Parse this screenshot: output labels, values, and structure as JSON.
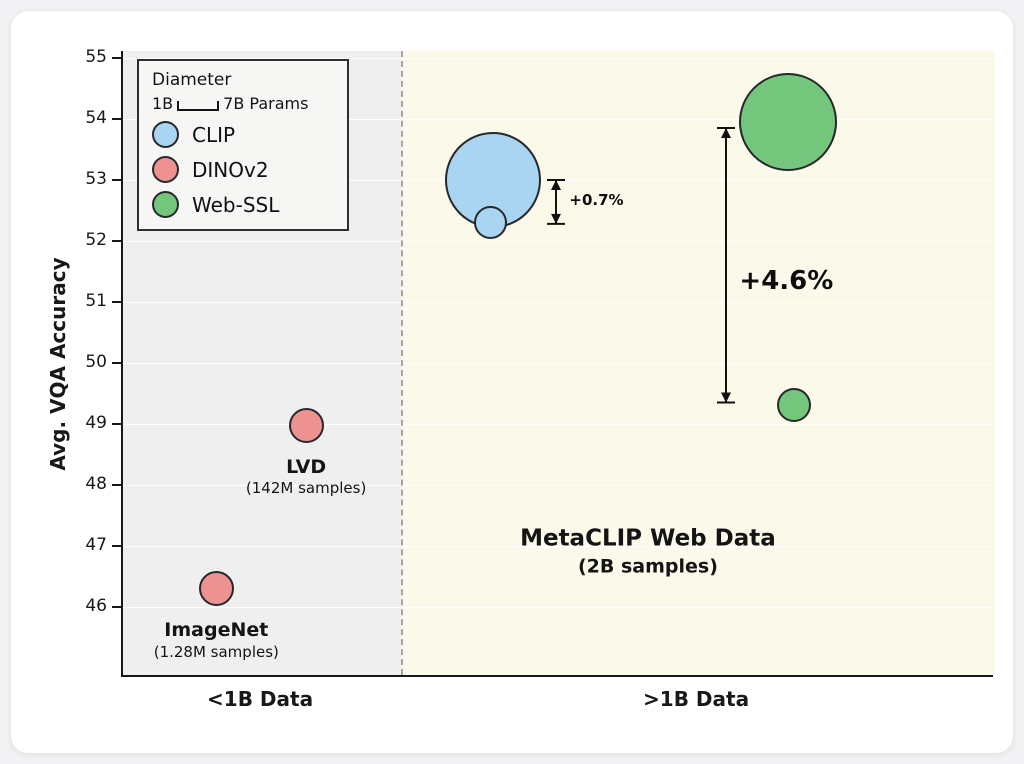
{
  "chart_data": {
    "type": "scatter",
    "title": "",
    "ylabel": "Avg. VQA Accuracy",
    "ylim": [
      44.85,
      55.11
    ],
    "yticks": [
      46,
      47,
      48,
      49,
      50,
      51,
      52,
      53,
      54,
      55
    ],
    "grid": true,
    "x_axis": {
      "divider_x": 0.319,
      "regions": [
        {
          "label": "<1B Data",
          "start": 0,
          "end": 0.319,
          "background": "#efeff0"
        },
        {
          "label": ">1B Data",
          "start": 0.319,
          "end": 1,
          "background": "#fbf9ea"
        }
      ]
    },
    "legend": {
      "title": "Diameter",
      "size_scale": {
        "min_label": "1B",
        "max_label": "7B Params"
      },
      "items": [
        {
          "label": "CLIP",
          "color": "#a9d5f2"
        },
        {
          "label": "DINOv2",
          "color": "#ee9191"
        },
        {
          "label": "Web-SSL",
          "color": "#74c67c"
        }
      ]
    },
    "points": [
      {
        "series": "DINOv2",
        "x": 0.107,
        "y": 46.3,
        "radius": 17.5,
        "color": "#ee9191",
        "label": "ImageNet",
        "sublabel": "(1.28M samples)"
      },
      {
        "series": "DINOv2",
        "x": 0.21,
        "y": 48.98,
        "radius": 17.5,
        "color": "#ee9191",
        "label": "LVD",
        "sublabel": "(142M samples)"
      },
      {
        "series": "CLIP",
        "x": 0.424,
        "y": 53.0,
        "radius": 48,
        "color": "#a9d5f2"
      },
      {
        "series": "CLIP",
        "x": 0.421,
        "y": 52.3,
        "radius": 16.5,
        "color": "#a9d5f2"
      },
      {
        "series": "Web-SSL",
        "x": 0.763,
        "y": 53.95,
        "radius": 49,
        "color": "#74c67c"
      },
      {
        "series": "Web-SSL",
        "x": 0.769,
        "y": 49.3,
        "radius": 17,
        "color": "#74c67c"
      }
    ],
    "annotations": [
      {
        "type": "range-arrow",
        "x": 0.497,
        "y_from": 52.28,
        "y_to": 53.0,
        "label": "+0.7%",
        "label_size": 15,
        "label_dy": 0
      },
      {
        "type": "range-arrow",
        "x": 0.692,
        "y_from": 49.35,
        "y_to": 53.85,
        "label": "+4.6%",
        "label_size": 26,
        "label_dy": 20
      },
      {
        "type": "text",
        "x": 0.602,
        "y": 46.9,
        "label": "MetaCLIP Web Data",
        "sublabel": "(2B samples)"
      }
    ]
  }
}
